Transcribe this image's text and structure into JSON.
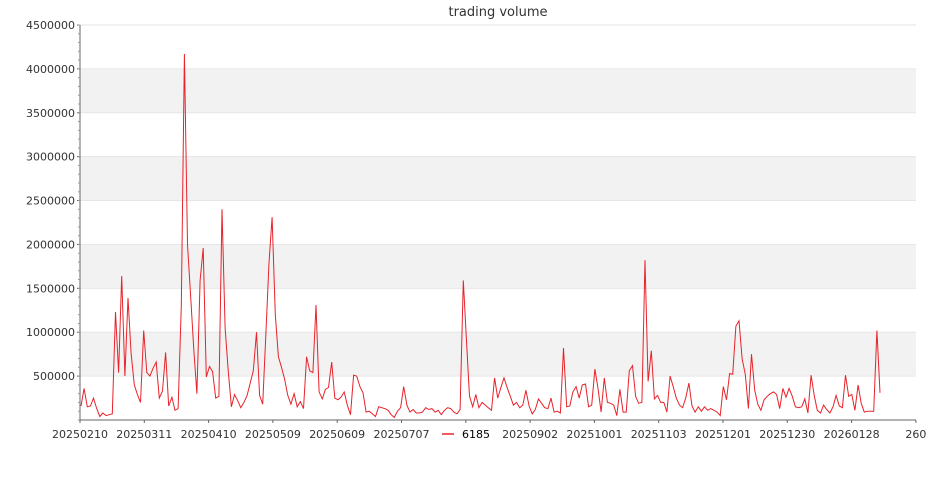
{
  "chart_data": {
    "type": "line",
    "title": "trading volume",
    "xlabel": "",
    "ylabel": "",
    "ylim": [
      0,
      4500000
    ],
    "y_ticks": [
      500000,
      1000000,
      1500000,
      2000000,
      2500000,
      3000000,
      3500000,
      4000000,
      4500000
    ],
    "x_tick_labels": [
      "20250210",
      "20250311",
      "20250410",
      "20250509",
      "20250609",
      "20250707",
      "",
      "20250902",
      "20251001",
      "20251103",
      "20251201",
      "20251230",
      "20260128",
      "260"
    ],
    "grid": "horizontal alternating bands",
    "legend_position": "bottom-center",
    "series_color": "#e8222a",
    "series": [
      {
        "name": "6185",
        "values": [
          160000,
          360000,
          150000,
          160000,
          250000,
          130000,
          40000,
          80000,
          50000,
          60000,
          70000,
          1230000,
          540000,
          1640000,
          500000,
          1390000,
          760000,
          400000,
          290000,
          200000,
          1020000,
          540000,
          500000,
          590000,
          660000,
          250000,
          330000,
          770000,
          160000,
          260000,
          110000,
          130000,
          1300000,
          4170000,
          2000000,
          1400000,
          800000,
          300000,
          1590000,
          1960000,
          490000,
          610000,
          550000,
          250000,
          270000,
          2400000,
          1050000,
          550000,
          150000,
          290000,
          220000,
          140000,
          200000,
          280000,
          420000,
          560000,
          1000000,
          280000,
          180000,
          990000,
          1790000,
          2310000,
          1200000,
          720000,
          600000,
          460000,
          280000,
          180000,
          300000,
          150000,
          210000,
          130000,
          720000,
          560000,
          540000,
          1310000,
          320000,
          240000,
          350000,
          370000,
          660000,
          250000,
          230000,
          260000,
          320000,
          170000,
          60000,
          510000,
          500000,
          380000,
          310000,
          90000,
          100000,
          70000,
          40000,
          150000,
          140000,
          130000,
          110000,
          60000,
          30000,
          100000,
          140000,
          380000,
          170000,
          90000,
          120000,
          80000,
          80000,
          90000,
          140000,
          120000,
          130000,
          90000,
          110000,
          60000,
          110000,
          140000,
          130000,
          90000,
          70000,
          120000,
          1590000,
          920000,
          270000,
          150000,
          290000,
          140000,
          200000,
          170000,
          140000,
          110000,
          480000,
          250000,
          370000,
          480000,
          370000,
          270000,
          170000,
          200000,
          140000,
          170000,
          340000,
          160000,
          70000,
          120000,
          240000,
          190000,
          140000,
          130000,
          250000,
          90000,
          100000,
          80000,
          820000,
          150000,
          160000,
          320000,
          380000,
          250000,
          400000,
          410000,
          150000,
          170000,
          580000,
          360000,
          90000,
          480000,
          200000,
          190000,
          170000,
          50000,
          350000,
          90000,
          90000,
          560000,
          620000,
          270000,
          190000,
          200000,
          1820000,
          440000,
          790000,
          240000,
          280000,
          200000,
          200000,
          90000,
          500000,
          380000,
          250000,
          170000,
          140000,
          250000,
          420000,
          160000,
          90000,
          150000,
          100000,
          150000,
          110000,
          130000,
          110000,
          90000,
          50000,
          380000,
          230000,
          530000,
          520000,
          1070000,
          1130000,
          700000,
          520000,
          130000,
          750000,
          340000,
          180000,
          110000,
          230000,
          270000,
          300000,
          320000,
          290000,
          130000,
          360000,
          260000,
          360000,
          270000,
          150000,
          140000,
          150000,
          240000,
          80000,
          510000,
          280000,
          110000,
          80000,
          170000,
          120000,
          80000,
          150000,
          280000,
          160000,
          140000,
          510000,
          270000,
          290000,
          110000,
          400000,
          190000,
          90000,
          100000,
          100000,
          100000,
          1020000,
          310000
        ]
      }
    ]
  }
}
